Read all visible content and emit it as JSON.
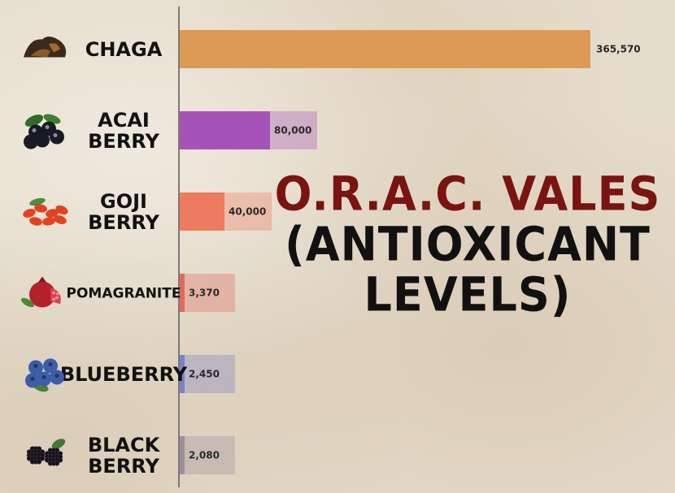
{
  "chart_data": {
    "type": "bar",
    "orientation": "horizontal",
    "title_lines": [
      "O.R.A.C. VALES",
      "(ANTIOXICANT",
      "LEVELS)"
    ],
    "categories": [
      {
        "label_lines": [
          "CHAGA"
        ],
        "value_label": "365,570",
        "icon": "chaga-mushroom-icon",
        "color": "#dd9a55"
      },
      {
        "label_lines": [
          "ACAI",
          "BERRY"
        ],
        "value_label": "80,000",
        "icon": "acai-berry-icon",
        "color": "#a653b8"
      },
      {
        "label_lines": [
          "GOJI",
          "BERRY"
        ],
        "value_label": "40,000",
        "icon": "goji-berry-icon",
        "color": "#ec7b5f"
      },
      {
        "label_lines": [
          "POMAGRANITE"
        ],
        "value_label": "3,370",
        "icon": "pomegranate-icon",
        "color": "#e06a5e"
      },
      {
        "label_lines": [
          "BLUEBERRY"
        ],
        "value_label": "2,450",
        "icon": "blueberry-icon",
        "color": "#7b82c4"
      },
      {
        "label_lines": [
          "BLACK",
          "BERRY"
        ],
        "value_label": "2,080",
        "icon": "blackberry-icon",
        "color": "#9c8e9a"
      }
    ],
    "values": [
      365570,
      80000,
      40000,
      3370,
      2450,
      2080
    ],
    "grid": false,
    "legend": "none"
  }
}
